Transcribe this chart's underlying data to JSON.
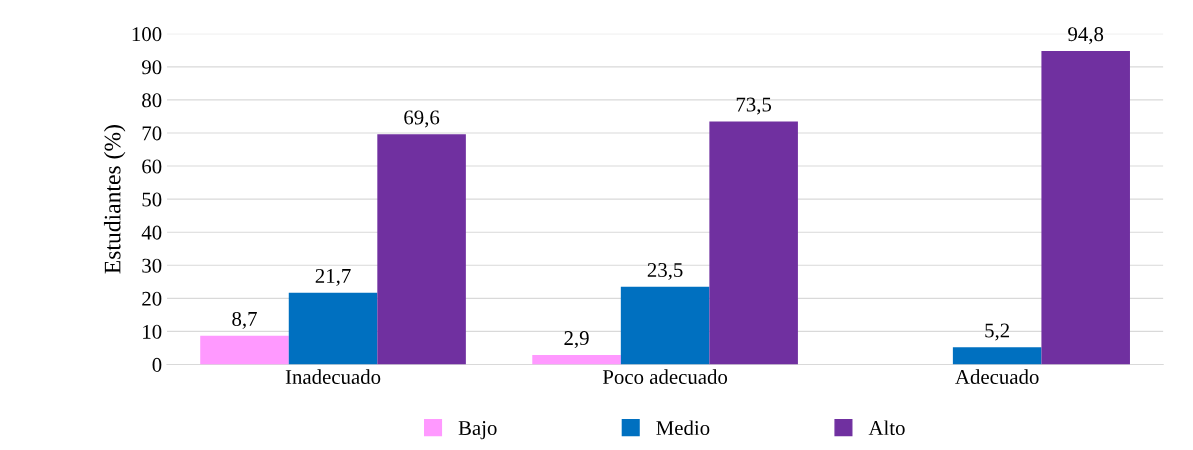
{
  "chart_data": {
    "type": "bar",
    "ylabel": "Estudiantes (%)",
    "categories": [
      "Inadecuado",
      "Poco adecuado",
      "Adecuado"
    ],
    "series": [
      {
        "name": "Bajo",
        "color": "#ff99ff",
        "values": [
          8.7,
          2.9,
          null
        ],
        "value_labels": [
          "8,7",
          "2,9",
          null
        ]
      },
      {
        "name": "Medio",
        "color": "#0070c0",
        "values": [
          21.7,
          23.5,
          5.2
        ],
        "value_labels": [
          "21,7",
          "23,5",
          "5,2"
        ]
      },
      {
        "name": "Alto",
        "color": "#7030a0",
        "values": [
          69.6,
          73.5,
          94.8
        ],
        "value_labels": [
          "69,6",
          "73,5",
          "94,8"
        ]
      }
    ],
    "ylim": [
      0,
      100
    ],
    "yticks": [
      0,
      10,
      20,
      30,
      40,
      50,
      60,
      70,
      80,
      90,
      100
    ],
    "grid": "y",
    "legend": "bottom"
  }
}
